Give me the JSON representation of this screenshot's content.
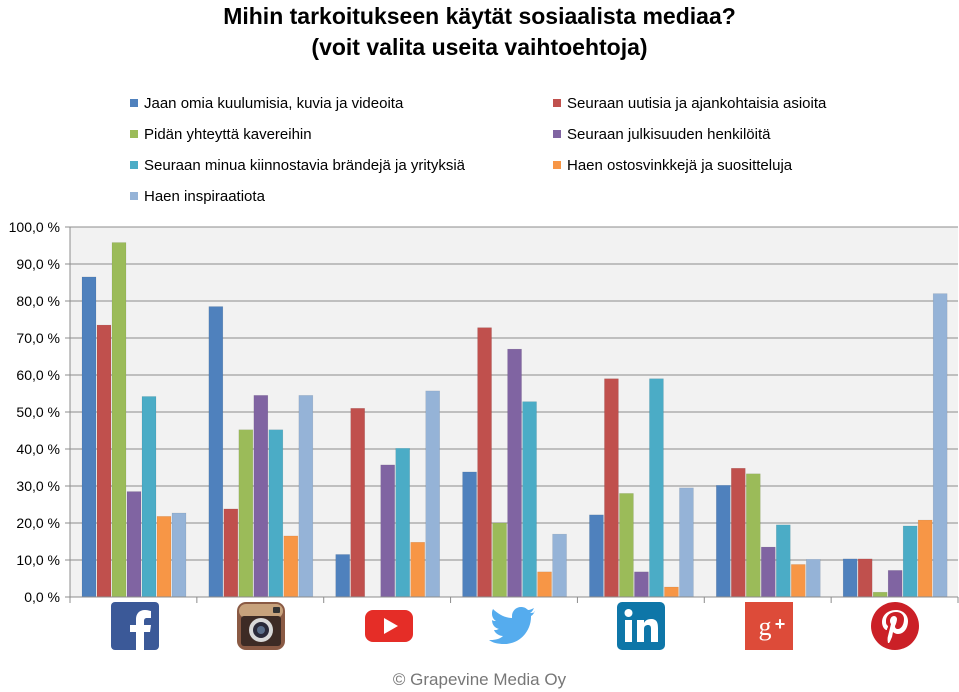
{
  "title_line1": "Mihin tarkoitukseen käytät sosiaalista mediaa?",
  "title_line2": "(voit valita useita vaihtoehtoja)",
  "footer": "© Grapevine Media Oy",
  "colors": [
    "#4f81bd",
    "#c0504d",
    "#9bbb59",
    "#8064a2",
    "#4bacc6",
    "#f79646",
    "#95b3d7"
  ],
  "icons": [
    {
      "name": "facebook-icon",
      "color": "#3b5998"
    },
    {
      "name": "instagram-icon",
      "color": "#8a5a44"
    },
    {
      "name": "youtube-icon",
      "color": "#e52d27"
    },
    {
      "name": "twitter-icon",
      "color": "#55acee"
    },
    {
      "name": "linkedin-icon",
      "color": "#0e76a8"
    },
    {
      "name": "google-plus-icon",
      "color": "#dd4b39"
    },
    {
      "name": "pinterest-icon",
      "color": "#cb2027"
    }
  ],
  "chart_data": {
    "type": "bar",
    "title": "Mihin tarkoitukseen käytät sosiaalista mediaa? (voit valita useita vaihtoehtoja)",
    "categories": [
      "Facebook",
      "Instagram",
      "YouTube",
      "Twitter",
      "LinkedIn",
      "Google+",
      "Pinterest"
    ],
    "ylim": [
      0,
      100
    ],
    "yticks": [
      "0,0 %",
      "10,0 %",
      "20,0 %",
      "30,0 %",
      "40,0 %",
      "50,0 %",
      "60,0 %",
      "70,0 %",
      "80,0 %",
      "90,0 %",
      "100,0 %"
    ],
    "grid": true,
    "legend_position": "top",
    "series": [
      {
        "name": "Jaan omia kuulumisia, kuvia ja videoita",
        "values": [
          86.5,
          78.5,
          11.5,
          33.8,
          22.2,
          30.2,
          10.3
        ]
      },
      {
        "name": "Seuraan uutisia ja ajankohtaisia asioita",
        "values": [
          73.5,
          23.8,
          51.0,
          72.8,
          59.0,
          34.8,
          10.3
        ]
      },
      {
        "name": "Pidän yhteyttä kavereihin",
        "values": [
          95.8,
          45.2,
          0,
          20.0,
          28.0,
          33.3,
          1.3
        ]
      },
      {
        "name": "Seuraan julkisuuden henkilöitä",
        "values": [
          28.5,
          54.5,
          35.7,
          67.0,
          6.8,
          13.5,
          7.2
        ]
      },
      {
        "name": "Seuraan minua kiinnostavia brändejä ja yrityksiä",
        "values": [
          54.2,
          45.2,
          40.2,
          52.8,
          59.0,
          19.5,
          19.2
        ]
      },
      {
        "name": "Haen ostosvinkkejä ja suositteluja",
        "values": [
          21.8,
          16.5,
          14.8,
          6.8,
          2.7,
          8.8,
          20.8
        ]
      },
      {
        "name": "Haen inspiraatiota",
        "values": [
          22.7,
          54.5,
          55.7,
          17.0,
          29.5,
          10.2,
          82.0
        ]
      }
    ]
  }
}
